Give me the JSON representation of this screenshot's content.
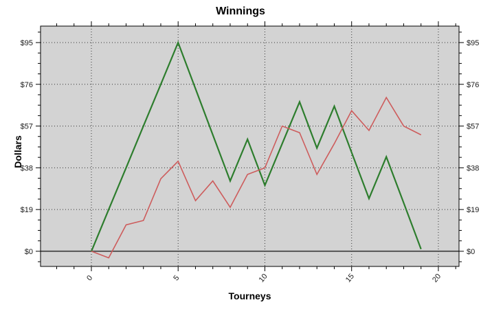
{
  "chart_data": {
    "type": "line",
    "title": "Winnings",
    "xlabel": "Tourneys",
    "ylabel": "Dollars",
    "x": [
      0,
      1,
      2,
      3,
      4,
      5,
      6,
      7,
      8,
      9,
      10,
      11,
      12,
      13,
      14,
      15,
      16,
      17,
      18,
      19
    ],
    "series": [
      {
        "name": "green-winnings-line",
        "color": "#2d7d2d",
        "width": 2.2,
        "values": [
          0,
          19,
          38,
          57,
          76,
          95,
          74,
          53,
          32,
          51,
          30,
          49,
          68,
          47,
          66,
          45,
          24,
          43,
          22,
          1
        ]
      },
      {
        "name": "red-winnings-line",
        "color": "#cd5c5c",
        "width": 1.6,
        "values": [
          0,
          -3,
          12,
          14,
          33,
          41,
          23,
          32,
          20,
          35,
          38,
          57,
          54,
          35,
          49,
          64,
          55,
          70,
          57,
          53
        ]
      }
    ],
    "ytick_values": [
      0,
      19,
      38,
      57,
      76,
      95
    ],
    "ytick_labels": [
      "$0",
      "$19",
      "$38",
      "$57",
      "$76",
      "$95"
    ],
    "ytick_minor_step": 4.75,
    "xtick_values": [
      0,
      5,
      10,
      15,
      20
    ],
    "xtick_labels": [
      "0",
      "5",
      "10",
      "15",
      "20"
    ],
    "xtick_minor_step": 1,
    "xlim": [
      -2.93,
      21.19
    ],
    "ylim": [
      -6.9,
      102.5
    ],
    "grid": "dotted at major ticks, both axes",
    "zero_line": true,
    "legend": "none",
    "plot_bg": "#d3d3d3",
    "grid_color": "#333333",
    "zero_line_color": "#555555",
    "axis_color": "#000000"
  }
}
